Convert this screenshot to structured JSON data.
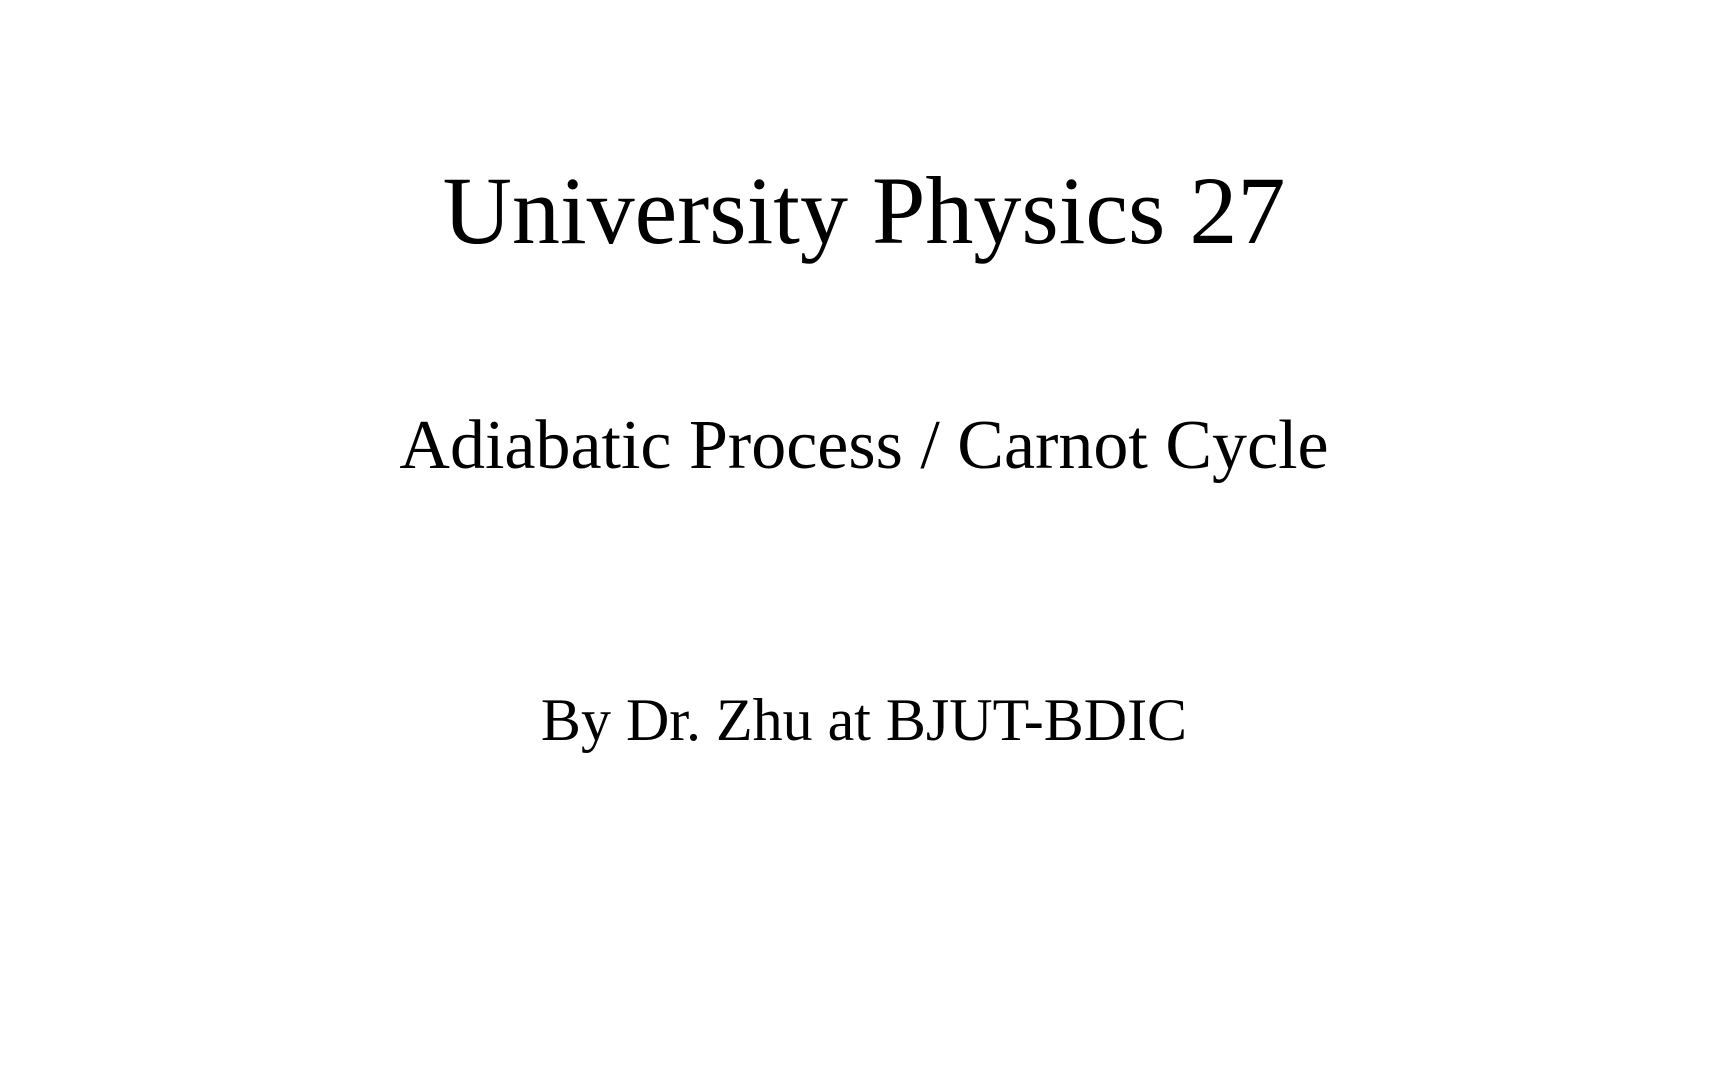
{
  "slide": {
    "title": "University Physics 27",
    "subtitle": "Adiabatic Process / Carnot Cycle",
    "author": "By Dr. Zhu at BJUT-BDIC",
    "background_color": "#ffffff",
    "text_color": "#000000",
    "font_family": "Comic Sans MS",
    "title_fontsize": 96,
    "subtitle_fontsize": 70,
    "author_fontsize": 60
  }
}
